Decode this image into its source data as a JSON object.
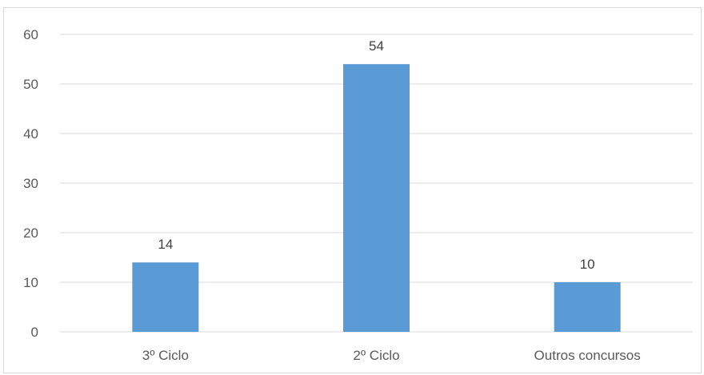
{
  "chart_data": {
    "type": "bar",
    "categories": [
      "3º Ciclo",
      "2º Ciclo",
      "Outros concursos"
    ],
    "values": [
      14,
      54,
      10
    ],
    "data_labels": [
      "14",
      "54",
      "10"
    ],
    "ylim": [
      0,
      60
    ],
    "yticks": [
      0,
      10,
      20,
      30,
      40,
      50,
      60
    ],
    "grid": true,
    "legend": "none",
    "colors": {
      "bar": "#5b9bd5",
      "grid": "#d9d9d9",
      "axis_text": "#595959",
      "data_label": "#404040"
    }
  }
}
